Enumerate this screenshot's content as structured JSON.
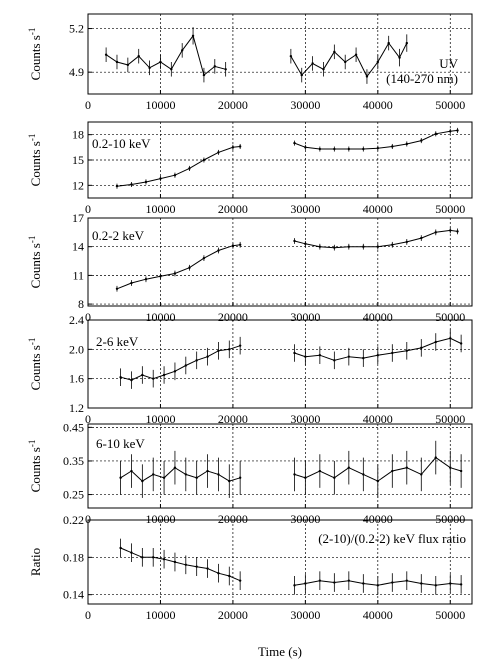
{
  "figure": {
    "xlabel": "Time (s)"
  },
  "chart_data": [
    {
      "type": "line",
      "panel_label": "UV\n(140-270 nm)",
      "ylabel": "Counts s-1",
      "xlim": [
        0,
        53000
      ],
      "ylim": [
        4.75,
        5.3
      ],
      "xticks": [
        0,
        10000,
        20000,
        30000,
        40000,
        50000
      ],
      "yticks": [
        4.9,
        5.2
      ],
      "ytick_labels": [
        "4.9",
        "5.2"
      ],
      "grid": true,
      "series": [
        {
          "segments": [
            {
              "x": [
                2500,
                4000,
                5500,
                7000,
                8500,
                10000,
                11500,
                13000,
                14500,
                16000,
                17500,
                19000
              ],
              "y": [
                5.02,
                4.97,
                4.95,
                5.01,
                4.93,
                4.97,
                4.92,
                5.05,
                5.15,
                4.88,
                4.94,
                4.92
              ],
              "err": [
                0.05,
                0.05,
                0.05,
                0.05,
                0.05,
                0.05,
                0.05,
                0.05,
                0.06,
                0.05,
                0.05,
                0.05
              ]
            },
            {
              "x": [
                28000,
                29500,
                31000,
                32500,
                34000,
                35500,
                37000,
                38500,
                40000,
                41500,
                43000,
                44000
              ],
              "y": [
                5.01,
                4.88,
                4.96,
                4.92,
                5.04,
                4.97,
                5.02,
                4.87,
                4.97,
                5.1,
                5.0,
                5.1
              ],
              "err": [
                0.05,
                0.05,
                0.05,
                0.05,
                0.05,
                0.05,
                0.05,
                0.05,
                0.05,
                0.05,
                0.06,
                0.06
              ]
            }
          ]
        }
      ]
    },
    {
      "type": "line",
      "panel_label": "0.2-10 keV",
      "ylabel": "Counts s-1",
      "xlim": [
        0,
        53000
      ],
      "ylim": [
        10.5,
        19.5
      ],
      "xticks": [
        0,
        10000,
        20000,
        30000,
        40000,
        50000
      ],
      "yticks": [
        12,
        15,
        18
      ],
      "ytick_labels": [
        "12",
        "15",
        "18"
      ],
      "grid": true,
      "series": [
        {
          "segments": [
            {
              "x": [
                4000,
                6000,
                8000,
                10000,
                12000,
                14000,
                16000,
                18000,
                20000,
                21000
              ],
              "y": [
                11.9,
                12.1,
                12.4,
                12.8,
                13.2,
                14.0,
                15.0,
                15.9,
                16.5,
                16.6
              ],
              "err": [
                0.3,
                0.3,
                0.3,
                0.3,
                0.3,
                0.3,
                0.3,
                0.3,
                0.3,
                0.3
              ]
            },
            {
              "x": [
                28500,
                30000,
                32000,
                34000,
                36000,
                38000,
                40000,
                42000,
                44000,
                46000,
                48000,
                50000,
                51000
              ],
              "y": [
                17.0,
                16.5,
                16.3,
                16.3,
                16.3,
                16.3,
                16.4,
                16.6,
                16.9,
                17.3,
                18.1,
                18.4,
                18.5
              ],
              "err": [
                0.3,
                0.3,
                0.3,
                0.3,
                0.3,
                0.3,
                0.3,
                0.3,
                0.3,
                0.3,
                0.3,
                0.3,
                0.3
              ]
            }
          ]
        }
      ]
    },
    {
      "type": "line",
      "panel_label": "0.2-2 keV",
      "ylabel": "Counts s-1",
      "xlim": [
        0,
        53000
      ],
      "ylim": [
        7.8,
        17.0
      ],
      "xticks": [
        0,
        10000,
        20000,
        30000,
        40000,
        50000
      ],
      "yticks": [
        8,
        11,
        14,
        17
      ],
      "ytick_labels": [
        "8",
        "11",
        "14",
        "17"
      ],
      "grid": true,
      "series": [
        {
          "segments": [
            {
              "x": [
                4000,
                6000,
                8000,
                10000,
                12000,
                14000,
                16000,
                18000,
                20000,
                21000
              ],
              "y": [
                9.6,
                10.2,
                10.6,
                10.9,
                11.2,
                11.8,
                12.8,
                13.6,
                14.1,
                14.2
              ],
              "err": [
                0.3,
                0.3,
                0.3,
                0.3,
                0.3,
                0.3,
                0.3,
                0.3,
                0.3,
                0.3
              ]
            },
            {
              "x": [
                28500,
                30000,
                32000,
                34000,
                36000,
                38000,
                40000,
                42000,
                44000,
                46000,
                48000,
                50000,
                51000
              ],
              "y": [
                14.6,
                14.3,
                14.0,
                13.9,
                14.0,
                14.0,
                14.0,
                14.2,
                14.5,
                14.9,
                15.5,
                15.7,
                15.6
              ],
              "err": [
                0.3,
                0.3,
                0.3,
                0.3,
                0.3,
                0.3,
                0.3,
                0.3,
                0.3,
                0.3,
                0.3,
                0.3,
                0.3
              ]
            }
          ]
        }
      ]
    },
    {
      "type": "line",
      "panel_label": "2-6 keV",
      "ylabel": "Counts s-1",
      "xlim": [
        0,
        53000
      ],
      "ylim": [
        1.2,
        2.4
      ],
      "xticks": [
        0,
        10000,
        20000,
        30000,
        40000,
        50000
      ],
      "yticks": [
        1.2,
        1.6,
        2.0,
        2.4
      ],
      "ytick_labels": [
        "1.2",
        "1.6",
        "2.0",
        "2.4"
      ],
      "grid": true,
      "series": [
        {
          "segments": [
            {
              "x": [
                4500,
                6000,
                7500,
                9000,
                10500,
                12000,
                13500,
                15000,
                16500,
                18000,
                19500,
                21000
              ],
              "y": [
                1.62,
                1.58,
                1.65,
                1.6,
                1.65,
                1.7,
                1.78,
                1.85,
                1.9,
                1.98,
                2.0,
                2.05
              ],
              "err": [
                0.12,
                0.12,
                0.12,
                0.12,
                0.12,
                0.12,
                0.12,
                0.12,
                0.12,
                0.12,
                0.12,
                0.12
              ]
            },
            {
              "x": [
                28500,
                30000,
                32000,
                34000,
                36000,
                38000,
                40000,
                42000,
                44000,
                46000,
                48000,
                50000,
                51500
              ],
              "y": [
                1.95,
                1.9,
                1.92,
                1.85,
                1.9,
                1.88,
                1.92,
                1.95,
                1.98,
                2.02,
                2.1,
                2.15,
                2.08
              ],
              "err": [
                0.12,
                0.12,
                0.12,
                0.12,
                0.12,
                0.12,
                0.12,
                0.12,
                0.12,
                0.12,
                0.12,
                0.12,
                0.12
              ]
            }
          ]
        }
      ]
    },
    {
      "type": "line",
      "panel_label": "6-10 keV",
      "ylabel": "Counts s-1",
      "xlim": [
        0,
        53000
      ],
      "ylim": [
        0.21,
        0.46
      ],
      "xticks": [
        0,
        10000,
        20000,
        30000,
        40000,
        50000
      ],
      "yticks": [
        0.25,
        0.35,
        0.45
      ],
      "ytick_labels": [
        "0.25",
        "0.35",
        "0.45"
      ],
      "grid": true,
      "series": [
        {
          "segments": [
            {
              "x": [
                4500,
                6000,
                7500,
                9000,
                10500,
                12000,
                13500,
                15000,
                16500,
                18000,
                19500,
                21000
              ],
              "y": [
                0.3,
                0.32,
                0.29,
                0.31,
                0.3,
                0.33,
                0.31,
                0.3,
                0.32,
                0.31,
                0.29,
                0.3
              ],
              "err": [
                0.05,
                0.05,
                0.05,
                0.05,
                0.05,
                0.05,
                0.05,
                0.05,
                0.05,
                0.05,
                0.05,
                0.05
              ]
            },
            {
              "x": [
                28500,
                30000,
                32000,
                34000,
                36000,
                38000,
                40000,
                42000,
                44000,
                46000,
                48000,
                50000,
                51500
              ],
              "y": [
                0.31,
                0.3,
                0.32,
                0.3,
                0.33,
                0.31,
                0.29,
                0.32,
                0.33,
                0.31,
                0.36,
                0.33,
                0.32
              ],
              "err": [
                0.05,
                0.05,
                0.05,
                0.05,
                0.05,
                0.05,
                0.05,
                0.05,
                0.05,
                0.05,
                0.05,
                0.05,
                0.05
              ]
            }
          ]
        }
      ]
    },
    {
      "type": "line",
      "panel_label": "(2-10)/(0.2-2) keV flux ratio",
      "ylabel": "Ratio",
      "xlim": [
        0,
        53000
      ],
      "ylim": [
        0.13,
        0.22
      ],
      "xticks": [
        0,
        10000,
        20000,
        30000,
        40000,
        50000
      ],
      "yticks": [
        0.14,
        0.18,
        0.22
      ],
      "ytick_labels": [
        "0.14",
        "0.18",
        "0.22"
      ],
      "grid": true,
      "series": [
        {
          "segments": [
            {
              "x": [
                4500,
                6000,
                7500,
                9000,
                10500,
                12000,
                13500,
                15000,
                16500,
                18000,
                19500,
                21000
              ],
              "y": [
                0.19,
                0.185,
                0.18,
                0.18,
                0.178,
                0.175,
                0.172,
                0.17,
                0.168,
                0.163,
                0.16,
                0.155
              ],
              "err": [
                0.01,
                0.01,
                0.01,
                0.01,
                0.01,
                0.01,
                0.01,
                0.01,
                0.01,
                0.01,
                0.01,
                0.01
              ]
            },
            {
              "x": [
                28500,
                30000,
                32000,
                34000,
                36000,
                38000,
                40000,
                42000,
                44000,
                46000,
                48000,
                50000,
                51500
              ],
              "y": [
                0.15,
                0.152,
                0.155,
                0.153,
                0.155,
                0.152,
                0.15,
                0.153,
                0.155,
                0.152,
                0.15,
                0.152,
                0.151
              ],
              "err": [
                0.01,
                0.01,
                0.01,
                0.01,
                0.01,
                0.01,
                0.01,
                0.01,
                0.01,
                0.01,
                0.01,
                0.01,
                0.01
              ]
            }
          ]
        }
      ]
    }
  ]
}
